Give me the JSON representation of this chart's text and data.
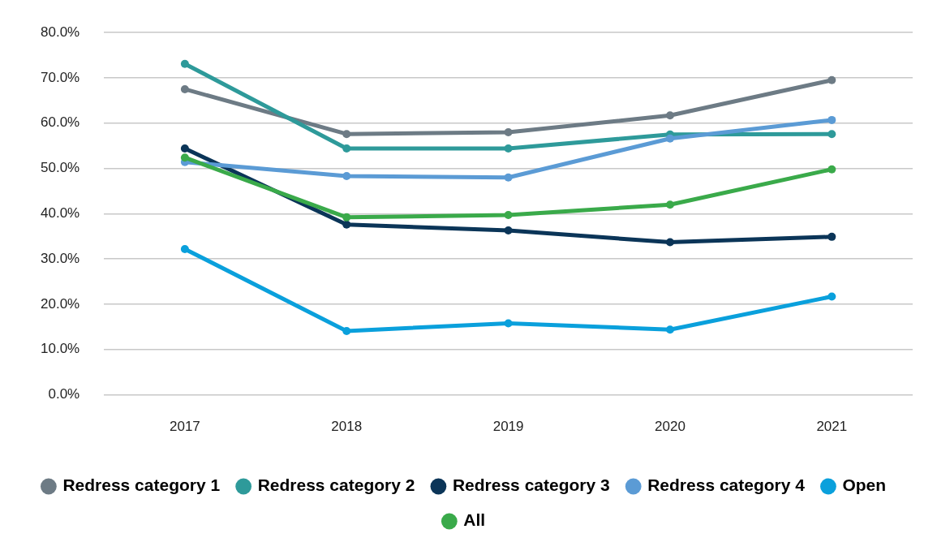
{
  "chart_data": {
    "type": "line",
    "categories": [
      "2017",
      "2018",
      "2019",
      "2020",
      "2021"
    ],
    "series": [
      {
        "name": "Redress category 1",
        "color": "#6d7b85",
        "values": [
          67.5,
          57.6,
          58.0,
          61.7,
          69.5
        ]
      },
      {
        "name": "Redress category 2",
        "color": "#2e9a9a",
        "values": [
          73.1,
          54.4,
          54.4,
          57.5,
          57.6
        ]
      },
      {
        "name": "Redress category 3",
        "color": "#0b3558",
        "values": [
          54.4,
          37.6,
          36.3,
          33.7,
          34.9
        ]
      },
      {
        "name": "Redress category 4",
        "color": "#5b9bd5",
        "values": [
          51.4,
          48.3,
          48.0,
          56.6,
          60.7
        ]
      },
      {
        "name": "Open",
        "color": "#0aa0dc",
        "values": [
          32.2,
          14.1,
          15.8,
          14.4,
          21.7
        ]
      },
      {
        "name": "All",
        "color": "#3aaa4a",
        "values": [
          52.4,
          39.2,
          39.7,
          42.0,
          49.8
        ]
      }
    ],
    "ylim": [
      0,
      80
    ],
    "yticks": [
      {
        "value": 0,
        "label": "0.0%"
      },
      {
        "value": 10,
        "label": "10.0%"
      },
      {
        "value": 20,
        "label": "20.0%"
      },
      {
        "value": 30,
        "label": "30.0%"
      },
      {
        "value": 40,
        "label": "40.0%"
      },
      {
        "value": 50,
        "label": "50.0%"
      },
      {
        "value": 60,
        "label": "60.0%"
      },
      {
        "value": 70,
        "label": "70.0%"
      },
      {
        "value": 80,
        "label": "80.0%"
      }
    ],
    "grid": "y",
    "legend": "bottom",
    "marker": "circle",
    "line_style": "solid"
  }
}
